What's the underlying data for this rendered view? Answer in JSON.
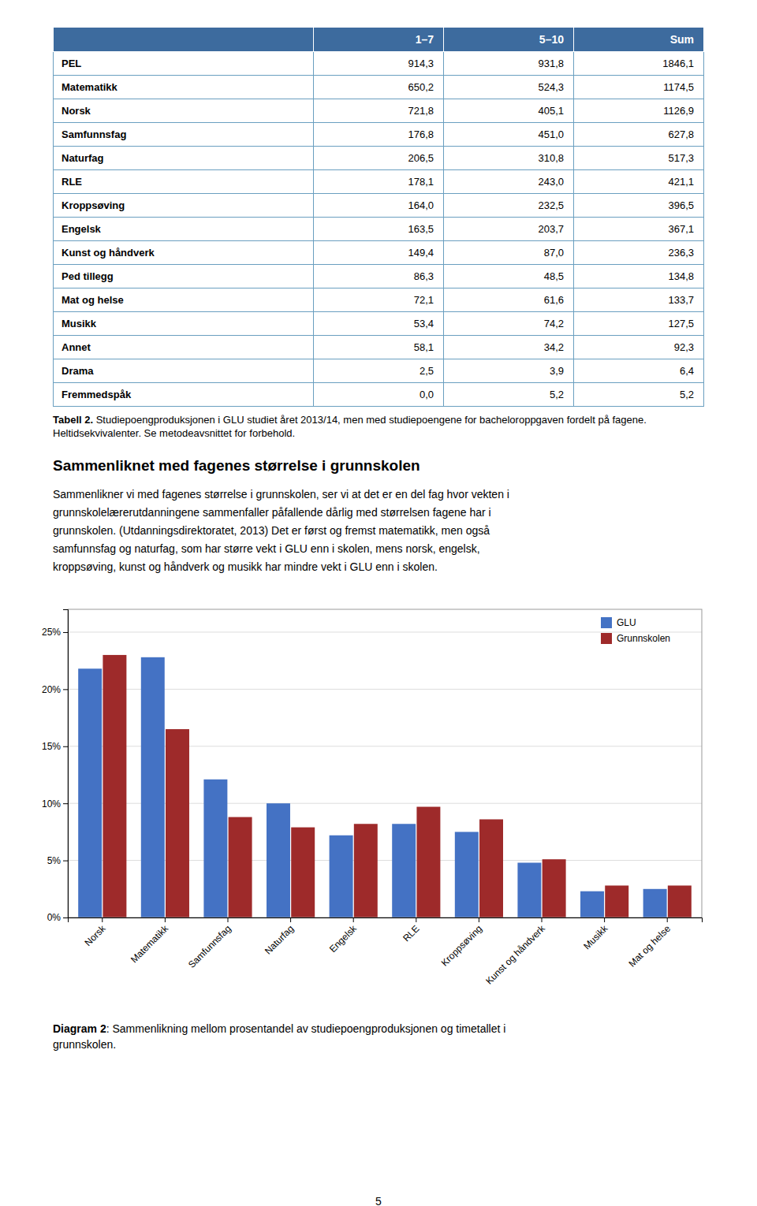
{
  "chart_data": {
    "type": "bar",
    "categories": [
      "Norsk",
      "Matematikk",
      "Samfunnsfag",
      "Naturfag",
      "Engelsk",
      "RLE",
      "Kroppsøving",
      "Kunst og håndverk",
      "Musikk",
      "Mat og helse"
    ],
    "series": [
      {
        "name": "GLU",
        "color": "#4472c4",
        "values": [
          21.8,
          22.8,
          12.1,
          10.0,
          7.2,
          8.2,
          7.5,
          4.8,
          2.3,
          2.5
        ]
      },
      {
        "name": "Grunnskolen",
        "color": "#9e2a2a",
        "values": [
          23.0,
          16.5,
          8.8,
          7.9,
          8.2,
          9.7,
          8.6,
          5.1,
          2.8,
          2.8
        ]
      }
    ],
    "ylim": [
      0,
      27
    ],
    "yticks": [
      {
        "value": 0,
        "label": "0%"
      },
      {
        "value": 5,
        "label": "5%"
      },
      {
        "value": 10,
        "label": "10%"
      },
      {
        "value": 15,
        "label": "15%"
      },
      {
        "value": 20,
        "label": "20%"
      },
      {
        "value": 25,
        "label": "25%"
      }
    ],
    "grid": true,
    "legend": "upper right"
  },
  "table": {
    "header": [
      null,
      "1–7",
      "5–10",
      "Sum"
    ],
    "rows": [
      [
        "PEL",
        "914,3",
        "931,8",
        "1846,1"
      ],
      [
        "Matematikk",
        "650,2",
        "524,3",
        "1174,5"
      ],
      [
        "Norsk",
        "721,8",
        "405,1",
        "1126,9"
      ],
      [
        "Samfunnsfag",
        "176,8",
        "451,0",
        "627,8"
      ],
      [
        "Naturfag",
        "206,5",
        "310,8",
        "517,3"
      ],
      [
        "RLE",
        "178,1",
        "243,0",
        "421,1"
      ],
      [
        "Kroppsøving",
        "164,0",
        "232,5",
        "396,5"
      ],
      [
        "Engelsk",
        "163,5",
        "203,7",
        "367,1"
      ],
      [
        "Kunst og håndverk",
        "149,4",
        "87,0",
        "236,3"
      ],
      [
        "Ped tillegg",
        "86,3",
        "48,5",
        "134,8"
      ],
      [
        "Mat og helse",
        "72,1",
        "61,6",
        "133,7"
      ],
      [
        "Musikk",
        "53,4",
        "74,2",
        "127,5"
      ],
      [
        "Annet",
        "58,1",
        "34,2",
        "92,3"
      ],
      [
        "Drama",
        "2,5",
        "3,9",
        "6,4"
      ],
      [
        "Fremmedspåk",
        "0,0",
        "5,2",
        "5,2"
      ]
    ],
    "caption_bold": "Tabell 2.",
    "caption_text": " Studiepoengproduksjonen i GLU studiet året 2013/14, men med studiepoengene for bacheloroppgaven fordelt på fagene. Heltidsekvivalenter. Se metodeavsnittet for forbehold."
  },
  "section_heading": "Sammenliknet med fagenes størrelse i grunnskolen",
  "body_text_lines": [
    "Sammenlikner vi med fagenes størrelse i grunnskolen, ser vi at det er en del fag hvor vekten i",
    "grunnskolelærerutdanningene sammenfaller påfallende dårlig med størrelsen fagene har i",
    "grunnskolen. (Utdanningsdirektoratet, 2013) Det er først og fremst matematikk, men også",
    "samfunnsfag og naturfag, som har større vekt i GLU enn i skolen, mens norsk, engelsk,",
    "kroppsøving, kunst og håndverk og musikk har mindre vekt i GLU enn i skolen."
  ],
  "diagram_caption": {
    "bold": "Diagram 2",
    "text": ": Sammenlikning mellom prosentandel av studiepoengproduksjonen og timetallet i",
    "text2": "grunnskolen."
  },
  "page_number": "5"
}
